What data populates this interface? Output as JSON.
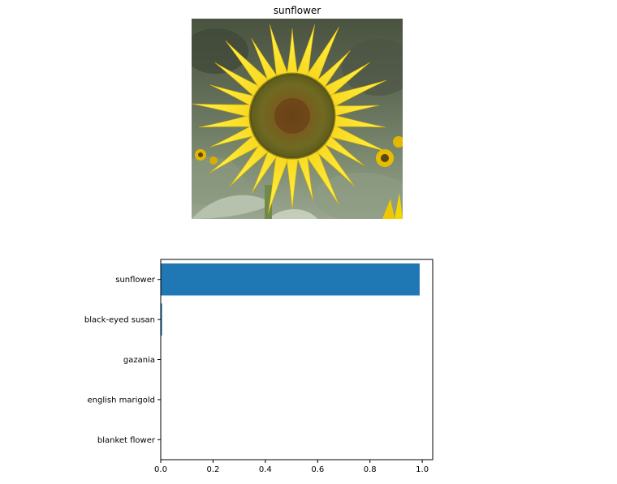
{
  "image_title": "sunflower",
  "colors": {
    "bar": "#1f77b4",
    "axis": "#000000",
    "background": "#ffffff"
  },
  "chart_data": {
    "type": "bar",
    "orientation": "horizontal",
    "categories": [
      "sunflower",
      "black-eyed susan",
      "gazania",
      "english marigold",
      "blanket flower"
    ],
    "values": [
      0.99,
      0.005,
      0.001,
      0.0005,
      0.0003
    ],
    "xlim": [
      0,
      1.04
    ],
    "xticks": [
      0.0,
      0.2,
      0.4,
      0.6,
      0.8,
      1.0
    ],
    "xtick_labels": [
      "0.0",
      "0.2",
      "0.4",
      "0.6",
      "0.8",
      "1.0"
    ],
    "title": "",
    "xlabel": "",
    "ylabel": "",
    "grid": false
  }
}
